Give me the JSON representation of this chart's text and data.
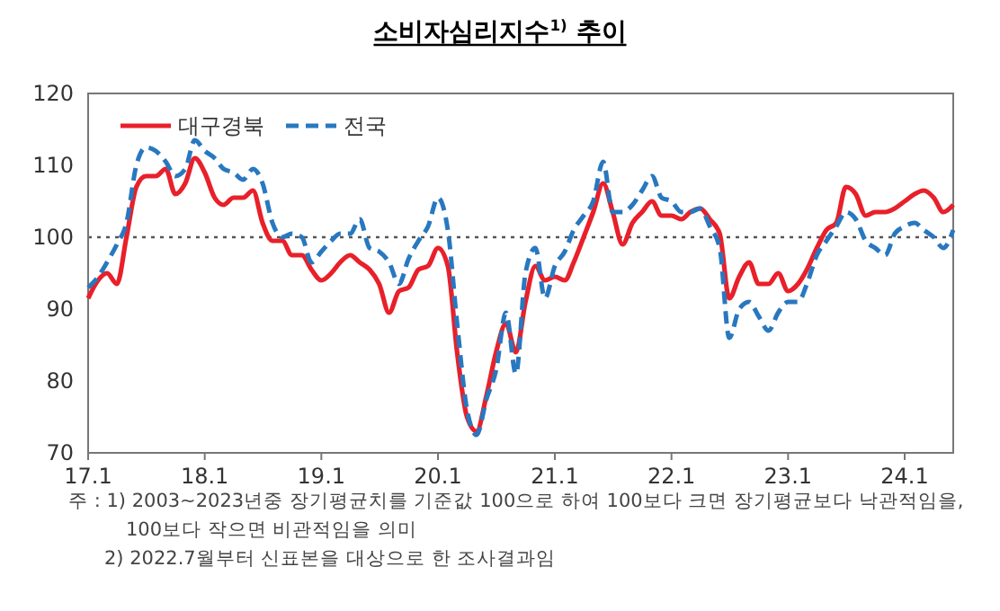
{
  "chart_data": {
    "type": "line",
    "title": "소비자심리지수$^{1)}$ 추이",
    "x": [
      "2017-01",
      "2017-02",
      "2017-03",
      "2017-04",
      "2017-05",
      "2017-06",
      "2017-07",
      "2017-08",
      "2017-09",
      "2017-10",
      "2017-11",
      "2017-12",
      "2018-01",
      "2018-02",
      "2018-03",
      "2018-04",
      "2018-05",
      "2018-06",
      "2018-07",
      "2018-08",
      "2018-09",
      "2018-10",
      "2018-11",
      "2018-12",
      "2019-01",
      "2019-02",
      "2019-03",
      "2019-04",
      "2019-05",
      "2019-06",
      "2019-07",
      "2019-08",
      "2019-09",
      "2019-10",
      "2019-11",
      "2019-12",
      "2020-01",
      "2020-02",
      "2020-03",
      "2020-04",
      "2020-05",
      "2020-06",
      "2020-07",
      "2020-08",
      "2020-09",
      "2020-10",
      "2020-11",
      "2020-12",
      "2021-01",
      "2021-02",
      "2021-03",
      "2021-04",
      "2021-05",
      "2021-06",
      "2021-07",
      "2021-08",
      "2021-09",
      "2021-10",
      "2021-11",
      "2021-12",
      "2022-01",
      "2022-02",
      "2022-03",
      "2022-04",
      "2022-05",
      "2022-06",
      "2022-07",
      "2022-08",
      "2022-09",
      "2022-10",
      "2022-11",
      "2022-12",
      "2023-01",
      "2023-02",
      "2023-03",
      "2023-04",
      "2023-05",
      "2023-06",
      "2023-07",
      "2023-08",
      "2023-09",
      "2023-10",
      "2023-11",
      "2023-12",
      "2024-01",
      "2024-02",
      "2024-03",
      "2024-04",
      "2024-05",
      "2024-06"
    ],
    "series": [
      {
        "name": "대구경북",
        "color": "#e8202a",
        "line_style": "solid",
        "values": [
          91.5,
          94,
          95,
          93.5,
          100,
          107,
          108.5,
          108.5,
          109.5,
          106,
          107.5,
          111,
          109,
          105.5,
          104.5,
          105.5,
          105.5,
          106.5,
          102,
          99.5,
          99.5,
          97.5,
          97.5,
          95.5,
          94,
          95,
          96.5,
          97.5,
          96.5,
          95.5,
          93.5,
          89.5,
          92.5,
          93,
          95.5,
          96,
          98.5,
          96,
          84,
          75,
          73,
          78,
          84,
          88,
          84,
          91,
          96,
          94,
          94.5,
          94,
          96.5,
          100,
          103.5,
          107.5,
          103.5,
          99,
          102,
          103.5,
          105,
          103,
          103,
          102.5,
          103.5,
          104,
          102.5,
          100.5,
          91.5,
          94.5,
          96.5,
          93.5,
          93.5,
          95,
          92.5,
          93.5,
          95.5,
          98.5,
          101,
          102,
          107,
          106,
          103,
          103.5,
          103.5,
          104,
          105,
          106,
          106.5,
          105.5,
          103.5,
          104.5
        ]
      },
      {
        "name": "전국",
        "color": "#2878c0",
        "line_style": "dashed",
        "values": [
          93,
          94.5,
          96.5,
          99,
          102,
          110,
          112.5,
          112,
          110.5,
          108.5,
          109.5,
          113.5,
          112,
          111,
          109.5,
          109,
          108,
          109.5,
          107.5,
          102,
          100,
          100.5,
          100,
          96.5,
          98,
          99.5,
          100.5,
          100.5,
          102.5,
          98.5,
          98,
          96.5,
          93.5,
          97,
          99.5,
          101.5,
          105.5,
          101,
          88,
          76,
          72.5,
          77.5,
          81.5,
          89.5,
          81,
          95,
          98.5,
          91.5,
          96,
          98,
          101,
          103,
          105,
          110.5,
          103.5,
          103.5,
          104.5,
          106.5,
          108.5,
          105.5,
          105,
          103.5,
          103.5,
          104,
          101.5,
          98.5,
          86,
          90,
          91,
          89,
          87,
          89.5,
          91,
          91,
          93.5,
          97.5,
          99.5,
          101.5,
          103.5,
          102.5,
          99.5,
          98.5,
          97.5,
          100.5,
          101.5,
          102,
          101,
          100,
          98.5,
          101
        ]
      }
    ],
    "xlim": [
      "2017-01",
      "2024-06"
    ],
    "xticks": [
      {
        "value": "2017-01",
        "label": "17.1"
      },
      {
        "value": "2018-01",
        "label": "18.1"
      },
      {
        "value": "2019-01",
        "label": "19.1"
      },
      {
        "value": "2020-01",
        "label": "20.1"
      },
      {
        "value": "2021-01",
        "label": "21.1"
      },
      {
        "value": "2022-01",
        "label": "22.1"
      },
      {
        "value": "2023-01",
        "label": "23.1"
      },
      {
        "value": "2024-01",
        "label": "24.1"
      }
    ],
    "ylim": [
      70,
      120
    ],
    "yticks": [
      70,
      80,
      90,
      100,
      110,
      120
    ],
    "ref_lines": [
      {
        "axis": "y",
        "value": 100,
        "color": "#555555",
        "line_style": "dotted"
      }
    ],
    "legend": "top left",
    "grid": false,
    "annotations": [
      "주 : 1) 2003~2023년중 장기평균치를 기준값 100으로 하여 100보다 크면 장기평균보다 낙관적임을, 100보다 작으면 비관적임을 의미",
      "2) 2022.7월부터 신표본을 대상으로 한 조사결과임"
    ]
  }
}
